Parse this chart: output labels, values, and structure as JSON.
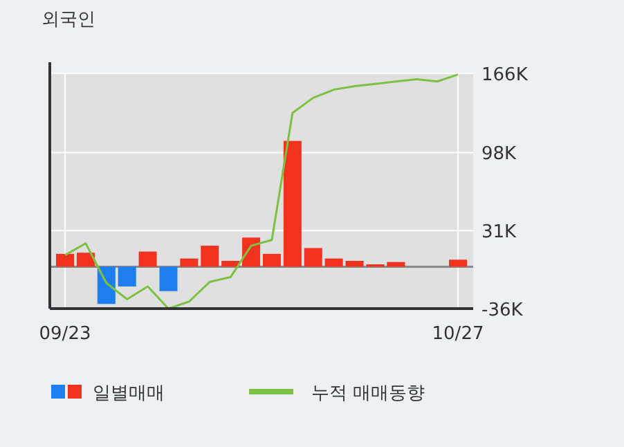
{
  "chart_data": {
    "type": "bar",
    "title": "외국인",
    "categories": [
      "09/23",
      null,
      null,
      null,
      null,
      null,
      null,
      null,
      null,
      null,
      null,
      null,
      null,
      null,
      null,
      null,
      null,
      null,
      null,
      "10/27"
    ],
    "series": [
      {
        "name": "일별매매",
        "colors": [
          "#f0321e",
          "#f0321e",
          "#1e7ef0",
          "#1e7ef0",
          "#f0321e",
          "#1e7ef0",
          "#f0321e",
          "#f0321e",
          "#f0321e",
          "#f0321e",
          "#f0321e",
          "#f0321e",
          "#f0321e",
          "#f0321e",
          "#f0321e",
          "#f0321e",
          "#f0321e",
          "#f0321e",
          "#f0321e",
          "#f0321e"
        ],
        "values": [
          11,
          12,
          -32,
          -17,
          13,
          -21,
          7,
          18,
          5,
          25,
          11,
          108,
          16,
          7,
          5,
          2,
          4,
          0,
          0,
          6
        ]
      },
      {
        "name": "누적 매매동향",
        "type": "line",
        "color": "#7cc242",
        "values": [
          10,
          20,
          -14,
          -28,
          -17,
          -36,
          -30,
          -13,
          -9,
          18,
          23,
          132,
          145,
          152,
          155,
          157,
          159,
          161,
          159,
          165
        ]
      }
    ],
    "ylim": [
      -36,
      166
    ],
    "yticks": [
      {
        "value": -36,
        "label": "-36K"
      },
      {
        "value": 31,
        "label": "31K"
      },
      {
        "value": 98,
        "label": "98K"
      },
      {
        "value": 166,
        "label": "166K"
      }
    ],
    "grid": true,
    "legend": "bottom"
  }
}
